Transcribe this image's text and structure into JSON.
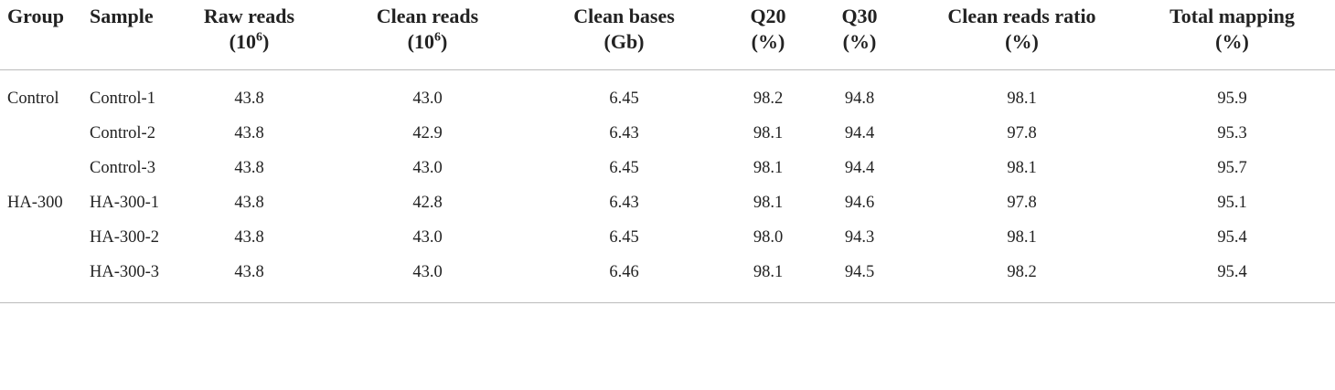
{
  "table": {
    "header": [
      {
        "name": "Group"
      },
      {
        "name": "Sample"
      },
      {
        "name": "Raw reads",
        "unit": {
          "open": "(10",
          "sup": "6",
          "close": ")"
        }
      },
      {
        "name": "Clean reads",
        "unit": {
          "open": "(10",
          "sup": "6",
          "close": ")"
        }
      },
      {
        "name": "Clean bases",
        "unit": {
          "open": "(Gb)"
        }
      },
      {
        "name": "Q20",
        "unit": {
          "open": "(%)"
        }
      },
      {
        "name": "Q30",
        "unit": {
          "open": "(%)"
        }
      },
      {
        "name": "Clean reads ratio",
        "unit": {
          "open": "(%)"
        }
      },
      {
        "name": "Total mapping",
        "unit": {
          "open": "(%)"
        }
      }
    ],
    "groups": [
      {
        "name": "Control",
        "samples": [
          {
            "sample": "Control-1",
            "values": [
              "43.8",
              "43.0",
              "6.45",
              "98.2",
              "94.8",
              "98.1",
              "95.9"
            ]
          },
          {
            "sample": "Control-2",
            "values": [
              "43.8",
              "42.9",
              "6.43",
              "98.1",
              "94.4",
              "97.8",
              "95.3"
            ]
          },
          {
            "sample": "Control-3",
            "values": [
              "43.8",
              "43.0",
              "6.45",
              "98.1",
              "94.4",
              "98.1",
              "95.7"
            ]
          }
        ]
      },
      {
        "name": "HA-300",
        "samples": [
          {
            "sample": "HA-300-1",
            "values": [
              "43.8",
              "42.8",
              "6.43",
              "98.1",
              "94.6",
              "97.8",
              "95.1"
            ]
          },
          {
            "sample": "HA-300-2",
            "values": [
              "43.8",
              "43.0",
              "6.45",
              "98.0",
              "94.3",
              "98.1",
              "95.4"
            ]
          },
          {
            "sample": "HA-300-3",
            "values": [
              "43.8",
              "43.0",
              "6.46",
              "98.1",
              "94.5",
              "98.2",
              "95.4"
            ]
          }
        ]
      }
    ]
  }
}
